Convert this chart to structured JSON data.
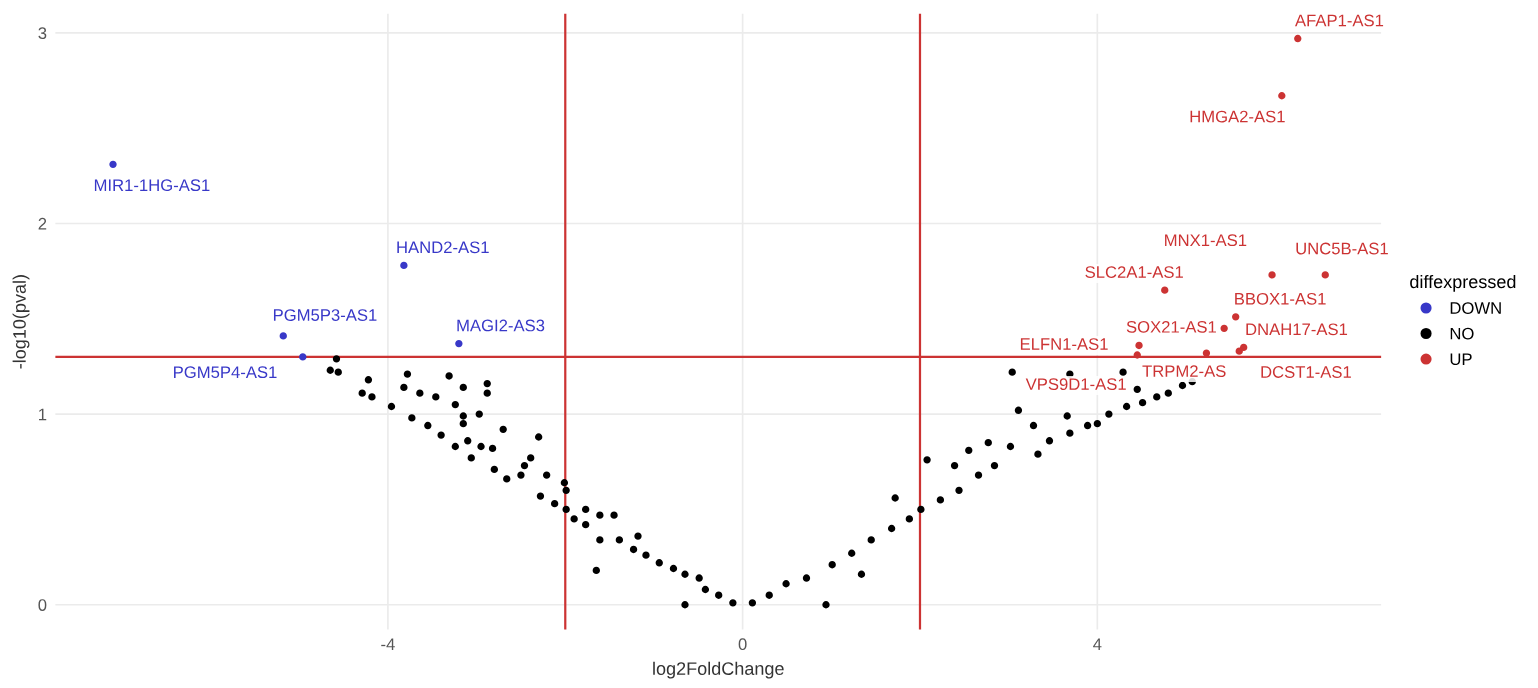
{
  "chart_data": {
    "type": "scatter",
    "xlabel": "log2FoldChange",
    "ylabel": "-log10(pval)",
    "legend_title": "diffexpressed",
    "legend": "right",
    "grid": true,
    "marker": "circle",
    "xlim": [
      -7.75,
      7.2
    ],
    "ylim": [
      -0.13,
      3.1
    ],
    "xticks": [
      -4,
      0,
      4
    ],
    "yticks": [
      0,
      1,
      2,
      3
    ],
    "ref_lines": [
      {
        "axis": "x",
        "value": -2,
        "color": "#cc3333"
      },
      {
        "axis": "x",
        "value": 2,
        "color": "#cc3333"
      },
      {
        "axis": "y",
        "value": 1.3,
        "color": "#cc3333"
      }
    ],
    "series": [
      {
        "name": "DOWN",
        "color": "#3838c8",
        "x": [
          -7.1,
          -3.82,
          -5.18,
          -3.2,
          -4.96
        ],
        "values": [
          2.31,
          1.78,
          1.41,
          1.37,
          1.3
        ]
      },
      {
        "name": "NO",
        "color": "#000000",
        "x": [
          -4.58,
          -4.65,
          -4.56,
          -4.22,
          -4.29,
          -4.18,
          -3.78,
          -3.82,
          -3.64,
          -3.31,
          -3.15,
          -2.88,
          -2.88,
          -3.46,
          -3.96,
          -3.24,
          -3.15,
          -2.97,
          -3.15,
          -3.73,
          -3.55,
          -3.4,
          -2.7,
          -3.1,
          -2.95,
          -2.82,
          -3.24,
          -3.06,
          -2.3,
          -2.39,
          -2.46,
          -2.8,
          -2.66,
          -2.5,
          -2.21,
          -2.01,
          -1.99,
          -2.28,
          -2.12,
          -1.99,
          -1.77,
          -1.61,
          -1.45,
          -1.9,
          -1.77,
          -1.18,
          -1.61,
          -1.39,
          -1.23,
          -1.09,
          -1.65,
          -0.94,
          -0.78,
          -0.65,
          -0.49,
          -0.65,
          -0.42,
          -0.27,
          -0.11,
          0.11,
          0.3,
          0.49,
          0.72,
          0.94,
          1.01,
          1.23,
          1.34,
          1.45,
          1.68,
          1.72,
          1.88,
          2.01,
          2.08,
          2.23,
          2.39,
          2.44,
          2.55,
          2.66,
          2.77,
          2.84,
          3.02,
          3.11,
          3.28,
          3.33,
          3.46,
          3.66,
          3.69,
          3.89,
          4.0,
          4.13,
          4.33,
          4.51,
          4.67,
          4.8,
          4.96,
          5.07,
          3.04,
          3.69,
          4.29,
          4.45
        ],
        "values": [
          1.29,
          1.23,
          1.22,
          1.18,
          1.11,
          1.09,
          1.21,
          1.14,
          1.11,
          1.2,
          1.14,
          1.16,
          1.11,
          1.09,
          1.04,
          1.05,
          0.99,
          1.0,
          0.95,
          0.98,
          0.94,
          0.89,
          0.92,
          0.86,
          0.83,
          0.82,
          0.83,
          0.77,
          0.88,
          0.77,
          0.73,
          0.71,
          0.66,
          0.68,
          0.68,
          0.64,
          0.6,
          0.57,
          0.53,
          0.5,
          0.5,
          0.47,
          0.47,
          0.45,
          0.42,
          0.36,
          0.34,
          0.34,
          0.29,
          0.26,
          0.18,
          0.22,
          0.19,
          0.16,
          0.14,
          0.0,
          0.08,
          0.05,
          0.01,
          0.01,
          0.05,
          0.11,
          0.14,
          0.0,
          0.21,
          0.27,
          0.16,
          0.34,
          0.4,
          0.56,
          0.45,
          0.5,
          0.76,
          0.55,
          0.73,
          0.6,
          0.81,
          0.68,
          0.85,
          0.73,
          0.83,
          1.02,
          0.94,
          0.79,
          0.86,
          0.99,
          0.9,
          0.94,
          0.95,
          1.0,
          1.04,
          1.06,
          1.09,
          1.11,
          1.15,
          1.17,
          1.22,
          1.21,
          1.22,
          1.13
        ]
      },
      {
        "name": "UP",
        "color": "#cc3333",
        "x": [
          6.26,
          6.08,
          5.97,
          6.57,
          4.76,
          5.56,
          5.43,
          5.65,
          4.47,
          5.23,
          5.6,
          4.45
        ],
        "values": [
          2.97,
          2.67,
          1.73,
          1.73,
          1.65,
          1.51,
          1.45,
          1.35,
          1.36,
          1.32,
          1.33,
          1.31
        ]
      }
    ],
    "annotations": [
      {
        "text": "MIR1-1HG-AS1",
        "x": -7.1,
        "y": 2.31
      },
      {
        "text": "HAND2-AS1",
        "x": -3.82,
        "y": 1.78
      },
      {
        "text": "PGM5P3-AS1",
        "x": -5.18,
        "y": 1.41
      },
      {
        "text": "MAGI2-AS3",
        "x": -3.2,
        "y": 1.37
      },
      {
        "text": "PGM5P4-AS1",
        "x": -4.96,
        "y": 1.3
      },
      {
        "text": "AFAP1-AS1",
        "x": 6.26,
        "y": 2.97
      },
      {
        "text": "HMGA2-AS1",
        "x": 6.08,
        "y": 2.67
      },
      {
        "text": "MNX1-AS1",
        "x": 5.97,
        "y": 1.73
      },
      {
        "text": "UNC5B-AS1",
        "x": 6.57,
        "y": 1.73
      },
      {
        "text": "SLC2A1-AS1",
        "x": 4.76,
        "y": 1.65
      },
      {
        "text": "BBOX1-AS1",
        "x": 5.56,
        "y": 1.51
      },
      {
        "text": "SOX21-AS1",
        "x": 5.43,
        "y": 1.45
      },
      {
        "text": "DNAH17-AS1",
        "x": 5.65,
        "y": 1.35
      },
      {
        "text": "ELFN1-AS1",
        "x": 4.47,
        "y": 1.36
      },
      {
        "text": "TRPM2-AS",
        "x": 5.23,
        "y": 1.32
      },
      {
        "text": "DCST1-AS1",
        "x": 5.6,
        "y": 1.33
      },
      {
        "text": "VPS9D1-AS1",
        "x": 4.45,
        "y": 1.31
      }
    ]
  }
}
